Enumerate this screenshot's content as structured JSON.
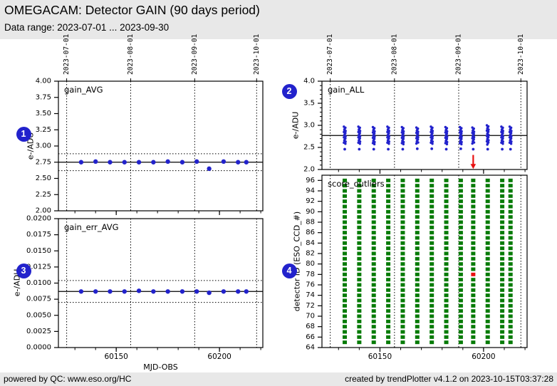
{
  "header": {
    "title": "OMEGACAM: Detector GAIN (90 days period)",
    "subtitle": "Data range: 2023-07-01 ... 2023-09-30"
  },
  "footer": {
    "left": "powered by QC: www.eso.org/HC",
    "right": "created by trendPlotter v4.1.2 on 2023-10-15T03:37:28"
  },
  "badges": [
    {
      "label": "1"
    },
    {
      "label": "2"
    },
    {
      "label": "3"
    },
    {
      "label": "4"
    }
  ],
  "colors": {
    "background_gray": "#e8e8e8",
    "plot_background": "#ffffff",
    "point_blue": "#2222cc",
    "badge_blue": "#2222cc",
    "outlier_green": "#067b06",
    "alert_red": "#e81010",
    "axis_black": "#000000"
  },
  "chart_data": [
    {
      "id": "gain_avg",
      "type": "scatter",
      "label": "gain_AVG",
      "ylabel": "e-/ADU",
      "xlabel": "",
      "xlim": [
        60122,
        60221
      ],
      "ylim": [
        2.0,
        4.0
      ],
      "ytick_step": 0.25,
      "ytick_decimals": 2,
      "xticks_major": [
        60150,
        60200
      ],
      "xtick_minor_step": 10,
      "month_lines": [
        {
          "mjd": 60126,
          "label": "2023-07-01"
        },
        {
          "mjd": 60157,
          "label": "2023-08-01"
        },
        {
          "mjd": 60188,
          "label": "2023-09-01"
        },
        {
          "mjd": 60218,
          "label": "2023-10-01"
        }
      ],
      "hline_solid": 2.75,
      "hlines_dotted": [
        2.88,
        2.62
      ],
      "x": [
        60133,
        60140,
        60147,
        60154,
        60161,
        60168,
        60175,
        60182,
        60189,
        60195,
        60202,
        60209,
        60213
      ],
      "y": [
        2.75,
        2.76,
        2.75,
        2.75,
        2.75,
        2.75,
        2.76,
        2.75,
        2.76,
        2.65,
        2.76,
        2.75,
        2.75
      ]
    },
    {
      "id": "gain_all",
      "type": "strips",
      "label": "gain_ALL",
      "ylabel": "e-/ADU",
      "xlabel": "",
      "xlim": [
        60122,
        60221
      ],
      "ylim": [
        2.0,
        4.0
      ],
      "ytick_step": 0.5,
      "ytick_decimals": 1,
      "ytick_minor_step": 0.1,
      "xticks_major": [
        60150,
        60200
      ],
      "xtick_minor_step": 10,
      "month_lines": [
        {
          "mjd": 60126,
          "label": "2023-07-01"
        },
        {
          "mjd": 60157,
          "label": "2023-08-01"
        },
        {
          "mjd": 60188,
          "label": "2023-09-01"
        },
        {
          "mjd": 60218,
          "label": "2023-10-01"
        }
      ],
      "hline_solid": 2.77,
      "x": [
        60133,
        60140,
        60147,
        60154,
        60161,
        60168,
        60175,
        60182,
        60189,
        60195,
        60202,
        60209,
        60213
      ],
      "strip_max": [
        2.97,
        2.97,
        2.96,
        2.97,
        2.96,
        2.95,
        2.97,
        2.96,
        2.96,
        2.95,
        3.0,
        2.97,
        2.97
      ],
      "strip_min": [
        2.57,
        2.56,
        2.57,
        2.56,
        2.57,
        2.57,
        2.56,
        2.57,
        2.56,
        2.57,
        2.55,
        2.57,
        2.57
      ],
      "strip_low_dot": [
        2.46,
        2.46,
        2.46,
        2.46,
        2.46,
        2.47,
        2.47,
        2.46,
        2.47,
        2.46,
        2.46,
        2.46,
        2.46
      ],
      "arrow": {
        "x": 60195,
        "y_from": 2.33,
        "y_to": 2.06
      }
    },
    {
      "id": "gain_err_avg",
      "type": "scatter",
      "label": "gain_err_AVG",
      "ylabel": "e-/ADU",
      "xlabel": "MJD-OBS",
      "xlim": [
        60122,
        60221
      ],
      "ylim": [
        0.0,
        0.02
      ],
      "ytick_step": 0.0025,
      "ytick_decimals": 4,
      "xticks_major": [
        60150,
        60200
      ],
      "xtick_minor_step": 10,
      "month_lines": [
        {
          "mjd": 60126,
          "label": "2023-07-01"
        },
        {
          "mjd": 60157,
          "label": "2023-08-01"
        },
        {
          "mjd": 60188,
          "label": "2023-09-01"
        },
        {
          "mjd": 60218,
          "label": "2023-10-01"
        }
      ],
      "hline_solid": 0.0087,
      "hlines_dotted": [
        0.0104,
        0.007
      ],
      "x": [
        60133,
        60140,
        60147,
        60154,
        60161,
        60168,
        60175,
        60182,
        60189,
        60195,
        60202,
        60209,
        60213
      ],
      "y": [
        0.0087,
        0.0087,
        0.0087,
        0.0087,
        0.0088,
        0.0087,
        0.0087,
        0.0087,
        0.0087,
        0.0085,
        0.0087,
        0.0087,
        0.0087
      ]
    },
    {
      "id": "score_outliers",
      "type": "grid",
      "label": "score_outliers",
      "ylabel": "detector ID (ESO_CCD_#)",
      "xlabel": "",
      "xlim": [
        60122,
        60221
      ],
      "ylim": [
        64,
        97
      ],
      "ytick_step": 2,
      "ytick_max": 96,
      "ytick_decimals": 0,
      "xticks_major": [
        60150,
        60200
      ],
      "xtick_minor_step": 10,
      "month_lines": [
        {
          "mjd": 60126,
          "label": "2023-07-01"
        },
        {
          "mjd": 60157,
          "label": "2023-08-01"
        },
        {
          "mjd": 60188,
          "label": "2023-09-01"
        },
        {
          "mjd": 60218,
          "label": "2023-10-01"
        }
      ],
      "x": [
        60133,
        60140,
        60147,
        60154,
        60161,
        60168,
        60175,
        60182,
        60189,
        60195,
        60202,
        60209,
        60213
      ],
      "ccd_min": 65,
      "ccd_max": 96,
      "red_cells": [
        {
          "mjd": 60195,
          "ccd": 78
        }
      ]
    }
  ]
}
